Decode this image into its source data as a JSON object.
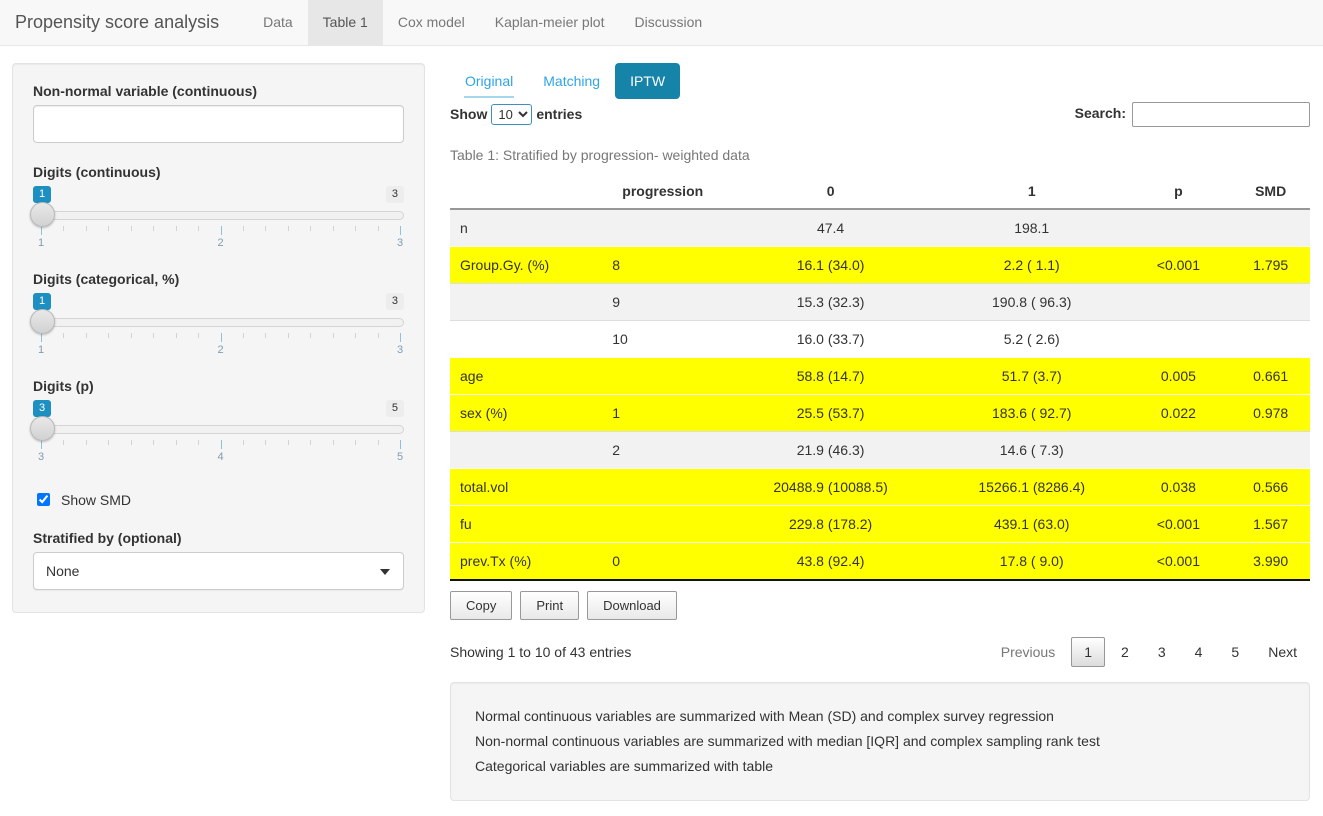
{
  "colors": {
    "link_blue": "#2fa4e7",
    "active_tab_bg": "#1683a8",
    "slider_value_bg": "#1d8fc0",
    "highlight_yellow": "#ffff00"
  },
  "navbar": {
    "brand": "Propensity score analysis",
    "tabs": [
      {
        "label": "Data",
        "active": false
      },
      {
        "label": "Table 1",
        "active": true
      },
      {
        "label": "Cox model",
        "active": false
      },
      {
        "label": "Kaplan-meier plot",
        "active": false
      },
      {
        "label": "Discussion",
        "active": false
      }
    ]
  },
  "sidebar": {
    "nonnormal_label": "Non-normal variable (continuous)",
    "nonnormal_value": "",
    "sliders": [
      {
        "label": "Digits (continuous)",
        "value": "1",
        "max": "3",
        "ticks": [
          "1",
          "2",
          "3"
        ]
      },
      {
        "label": "Digits (categorical, %)",
        "value": "1",
        "max": "3",
        "ticks": [
          "1",
          "2",
          "3"
        ]
      },
      {
        "label": "Digits (p)",
        "value": "3",
        "max": "5",
        "ticks": [
          "3",
          "4",
          "5"
        ]
      }
    ],
    "smd_checkbox": {
      "label": "Show SMD",
      "checked": true
    },
    "stratified": {
      "label": "Stratified by (optional)",
      "value": "None"
    }
  },
  "main": {
    "subtabs": [
      {
        "label": "Original",
        "active": false,
        "focused": true
      },
      {
        "label": "Matching",
        "active": false,
        "focused": false
      },
      {
        "label": "IPTW",
        "active": true,
        "focused": false
      }
    ],
    "show_entries": {
      "prefix": "Show",
      "value": "10",
      "suffix": "entries"
    },
    "search_label": "Search:",
    "search_value": "",
    "caption": "Table 1: Stratified by progression- weighted data",
    "table": {
      "headers": [
        "",
        "progression",
        "0",
        "1",
        "p",
        "SMD"
      ],
      "rows": [
        {
          "cells": [
            "n",
            "",
            "47.4",
            "198.1",
            "",
            ""
          ],
          "highlight": false
        },
        {
          "cells": [
            "Group.Gy. (%)",
            "8",
            "16.1 (34.0)",
            "2.2 ( 1.1)",
            "<0.001",
            "1.795"
          ],
          "highlight": true
        },
        {
          "cells": [
            "",
            "9",
            "15.3 (32.3)",
            "190.8 ( 96.3)",
            "",
            ""
          ],
          "highlight": false
        },
        {
          "cells": [
            "",
            "10",
            "16.0 (33.7)",
            "5.2 ( 2.6)",
            "",
            ""
          ],
          "highlight": false
        },
        {
          "cells": [
            "age",
            "",
            "58.8 (14.7)",
            "51.7 (3.7)",
            "0.005",
            "0.661"
          ],
          "highlight": true
        },
        {
          "cells": [
            "sex (%)",
            "1",
            "25.5 (53.7)",
            "183.6 ( 92.7)",
            "0.022",
            "0.978"
          ],
          "highlight": true
        },
        {
          "cells": [
            "",
            "2",
            "21.9 (46.3)",
            "14.6 ( 7.3)",
            "",
            ""
          ],
          "highlight": false
        },
        {
          "cells": [
            "total.vol",
            "",
            "20488.9 (10088.5)",
            "15266.1 (8286.4)",
            "0.038",
            "0.566"
          ],
          "highlight": true
        },
        {
          "cells": [
            "fu",
            "",
            "229.8 (178.2)",
            "439.1 (63.0)",
            "<0.001",
            "1.567"
          ],
          "highlight": true
        },
        {
          "cells": [
            "prev.Tx (%)",
            "0",
            "43.8 (92.4)",
            "17.8 ( 9.0)",
            "<0.001",
            "3.990"
          ],
          "highlight": true
        }
      ]
    },
    "buttons": [
      "Copy",
      "Print",
      "Download"
    ],
    "info": "Showing 1 to 10 of 43 entries",
    "pagination": {
      "previous": "Previous",
      "pages": [
        "1",
        "2",
        "3",
        "4",
        "5"
      ],
      "current": "1",
      "next": "Next"
    },
    "notes": [
      "Normal continuous variables are summarized with Mean (SD) and complex survey regression",
      "Non-normal continuous variables are summarized with median [IQR] and complex sampling rank test",
      "Categorical variables are summarized with table"
    ]
  }
}
